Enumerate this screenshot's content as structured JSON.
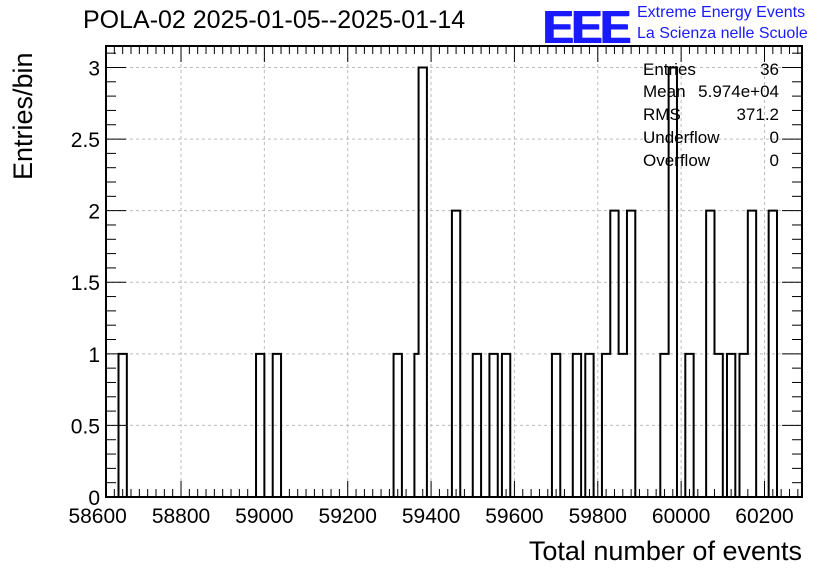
{
  "header": {
    "title": "POLA-02 2025-01-05--2025-01-14",
    "logo_text": "EEE",
    "logo_line1": "Extreme Energy Events",
    "logo_line2": "La Scienza nelle Scuole"
  },
  "stats": {
    "entries_label": "Entries",
    "entries_value": "36",
    "mean_label": "Mean",
    "mean_value": "5.974e+04",
    "rms_label": "RMS",
    "rms_value": "371.2",
    "underflow_label": "Underflow",
    "underflow_value": "0",
    "overflow_label": "Overflow",
    "overflow_value": "0"
  },
  "colors": {
    "logo": "#1a1aff",
    "line": "#000000",
    "grid": "#bbbbbb"
  },
  "chart_data": {
    "type": "bar",
    "title": "POLA-02 2025-01-05--2025-01-14",
    "xlabel": "Total number of events",
    "ylabel": "Entries/bin",
    "xlim": [
      58620,
      60290
    ],
    "ylim": [
      0,
      3.15
    ],
    "bin_width": 20,
    "grid": true,
    "x_ticks": [
      58600,
      58800,
      59000,
      59200,
      59400,
      59600,
      59800,
      60000,
      60200
    ],
    "x_tick_labels": [
      "58600",
      "58800",
      "59000",
      "59200",
      "59400",
      "59600",
      "59800",
      "60000",
      "60200"
    ],
    "y_ticks": [
      0,
      0.5,
      1,
      1.5,
      2,
      2.5,
      3
    ],
    "y_tick_labels": [
      "0",
      "0.5",
      "1",
      "1.5",
      "2",
      "2.5",
      "3"
    ],
    "bins": [
      {
        "x0": 58650,
        "x1": 58670,
        "count": 1
      },
      {
        "x0": 58980,
        "x1": 59000,
        "count": 1
      },
      {
        "x0": 59020,
        "x1": 59040,
        "count": 1
      },
      {
        "x0": 59310,
        "x1": 59330,
        "count": 1
      },
      {
        "x0": 59360,
        "x1": 59370,
        "count": 1
      },
      {
        "x0": 59370,
        "x1": 59390,
        "count": 3
      },
      {
        "x0": 59450,
        "x1": 59470,
        "count": 2
      },
      {
        "x0": 59500,
        "x1": 59520,
        "count": 1
      },
      {
        "x0": 59540,
        "x1": 59560,
        "count": 1
      },
      {
        "x0": 59570,
        "x1": 59590,
        "count": 1
      },
      {
        "x0": 59690,
        "x1": 59710,
        "count": 1
      },
      {
        "x0": 59740,
        "x1": 59760,
        "count": 1
      },
      {
        "x0": 59770,
        "x1": 59790,
        "count": 1
      },
      {
        "x0": 59810,
        "x1": 59830,
        "count": 1
      },
      {
        "x0": 59830,
        "x1": 59850,
        "count": 2
      },
      {
        "x0": 59850,
        "x1": 59870,
        "count": 1
      },
      {
        "x0": 59870,
        "x1": 59890,
        "count": 2
      },
      {
        "x0": 59950,
        "x1": 59970,
        "count": 1
      },
      {
        "x0": 59970,
        "x1": 59990,
        "count": 3
      },
      {
        "x0": 60010,
        "x1": 60030,
        "count": 1
      },
      {
        "x0": 60060,
        "x1": 60080,
        "count": 2
      },
      {
        "x0": 60080,
        "x1": 60100,
        "count": 1
      },
      {
        "x0": 60110,
        "x1": 60130,
        "count": 1
      },
      {
        "x0": 60140,
        "x1": 60160,
        "count": 1
      },
      {
        "x0": 60160,
        "x1": 60180,
        "count": 2
      },
      {
        "x0": 60210,
        "x1": 60230,
        "count": 2
      }
    ]
  }
}
